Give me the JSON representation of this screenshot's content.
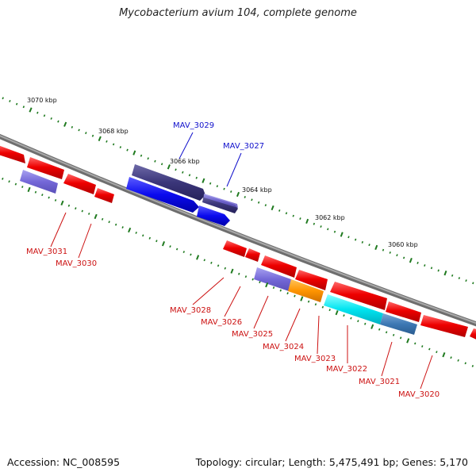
{
  "title": "Mycobacterium avium 104, complete genome",
  "footer": {
    "accession": "Accession: NC_008595",
    "stats": "Topology: circular; Length: 5,475,491 bp; Genes: 5,170"
  },
  "colors": {
    "forward_label": "#1010cc",
    "reverse_label": "#cc1111",
    "backbone": "#7d7d7d",
    "tick": "#1f7a1f"
  },
  "scale_labels": [
    "3070 kbp",
    "3068 kbp",
    "3066 kbp",
    "3064 kbp",
    "3062 kbp",
    "3060 kbp"
  ],
  "gene_labels_forward": [
    "MAV_3029",
    "MAV_3027"
  ],
  "gene_labels_reverse": [
    "MAV_3031",
    "MAV_3030",
    "MAV_3028",
    "MAV_3026",
    "MAV_3025",
    "MAV_3024",
    "MAV_3023",
    "MAV_3022",
    "MAV_3021",
    "MAV_3020"
  ]
}
